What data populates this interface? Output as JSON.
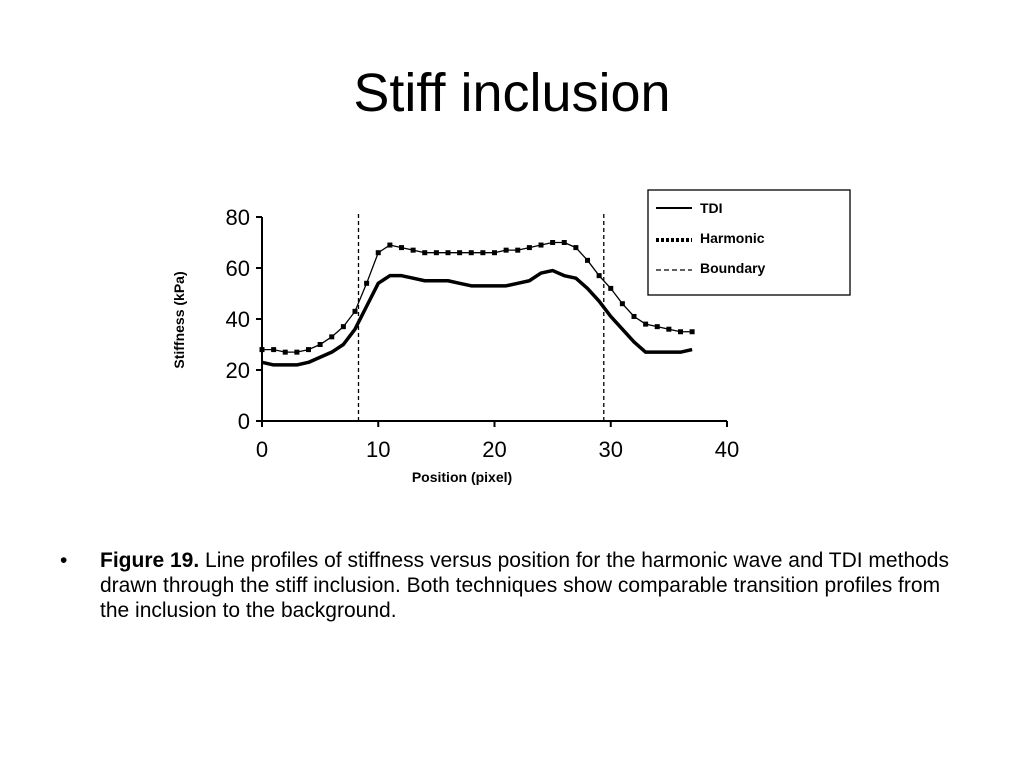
{
  "slide": {
    "title": "Stiff inclusion"
  },
  "caption": {
    "bullet": "•",
    "label": "Figure 19.",
    "text": "Line profiles of stiffness versus position for the harmonic wave and TDI methods drawn through the stiff inclusion. Both techniques show comparable transition profiles from the inclusion to the background."
  },
  "chart_data": {
    "type": "line",
    "title": "",
    "xlabel": "Position (pixel)",
    "ylabel": "Stiffness (kPa)",
    "xlim": [
      0,
      40
    ],
    "ylim": [
      0,
      80
    ],
    "xticks": [
      0,
      10,
      20,
      30,
      40
    ],
    "yticks": [
      0,
      20,
      40,
      60,
      80
    ],
    "grid": false,
    "legend": "top-right",
    "series": [
      {
        "name": "TDI",
        "style": "solid",
        "color": "#000000",
        "x": [
          0,
          1,
          2,
          3,
          4,
          5,
          6,
          7,
          8,
          9,
          10,
          11,
          12,
          13,
          14,
          15,
          16,
          17,
          18,
          19,
          20,
          21,
          22,
          23,
          24,
          25,
          26,
          27,
          28,
          29,
          30,
          31,
          32,
          33,
          34,
          35,
          36,
          37
        ],
        "values": [
          23,
          22,
          22,
          22,
          23,
          25,
          27,
          30,
          36,
          45,
          54,
          57,
          57,
          56,
          55,
          55,
          55,
          54,
          53,
          53,
          53,
          53,
          54,
          55,
          58,
          59,
          57,
          56,
          52,
          47,
          41,
          36,
          31,
          27,
          27,
          27,
          27,
          28
        ]
      },
      {
        "name": "Harmonic",
        "style": "dotted",
        "color": "#000000",
        "x": [
          0,
          1,
          2,
          3,
          4,
          5,
          6,
          7,
          8,
          9,
          10,
          11,
          12,
          13,
          14,
          15,
          16,
          17,
          18,
          19,
          20,
          21,
          22,
          23,
          24,
          25,
          26,
          27,
          28,
          29,
          30,
          31,
          32,
          33,
          34,
          35,
          36,
          37
        ],
        "values": [
          28,
          28,
          27,
          27,
          28,
          30,
          33,
          37,
          43,
          54,
          66,
          69,
          68,
          67,
          66,
          66,
          66,
          66,
          66,
          66,
          66,
          67,
          67,
          68,
          69,
          70,
          70,
          68,
          63,
          57,
          52,
          46,
          41,
          38,
          37,
          36,
          35,
          35
        ]
      }
    ],
    "boundaries": {
      "name": "Boundary",
      "style": "dashed",
      "x": [
        8.3,
        29.4
      ]
    }
  }
}
